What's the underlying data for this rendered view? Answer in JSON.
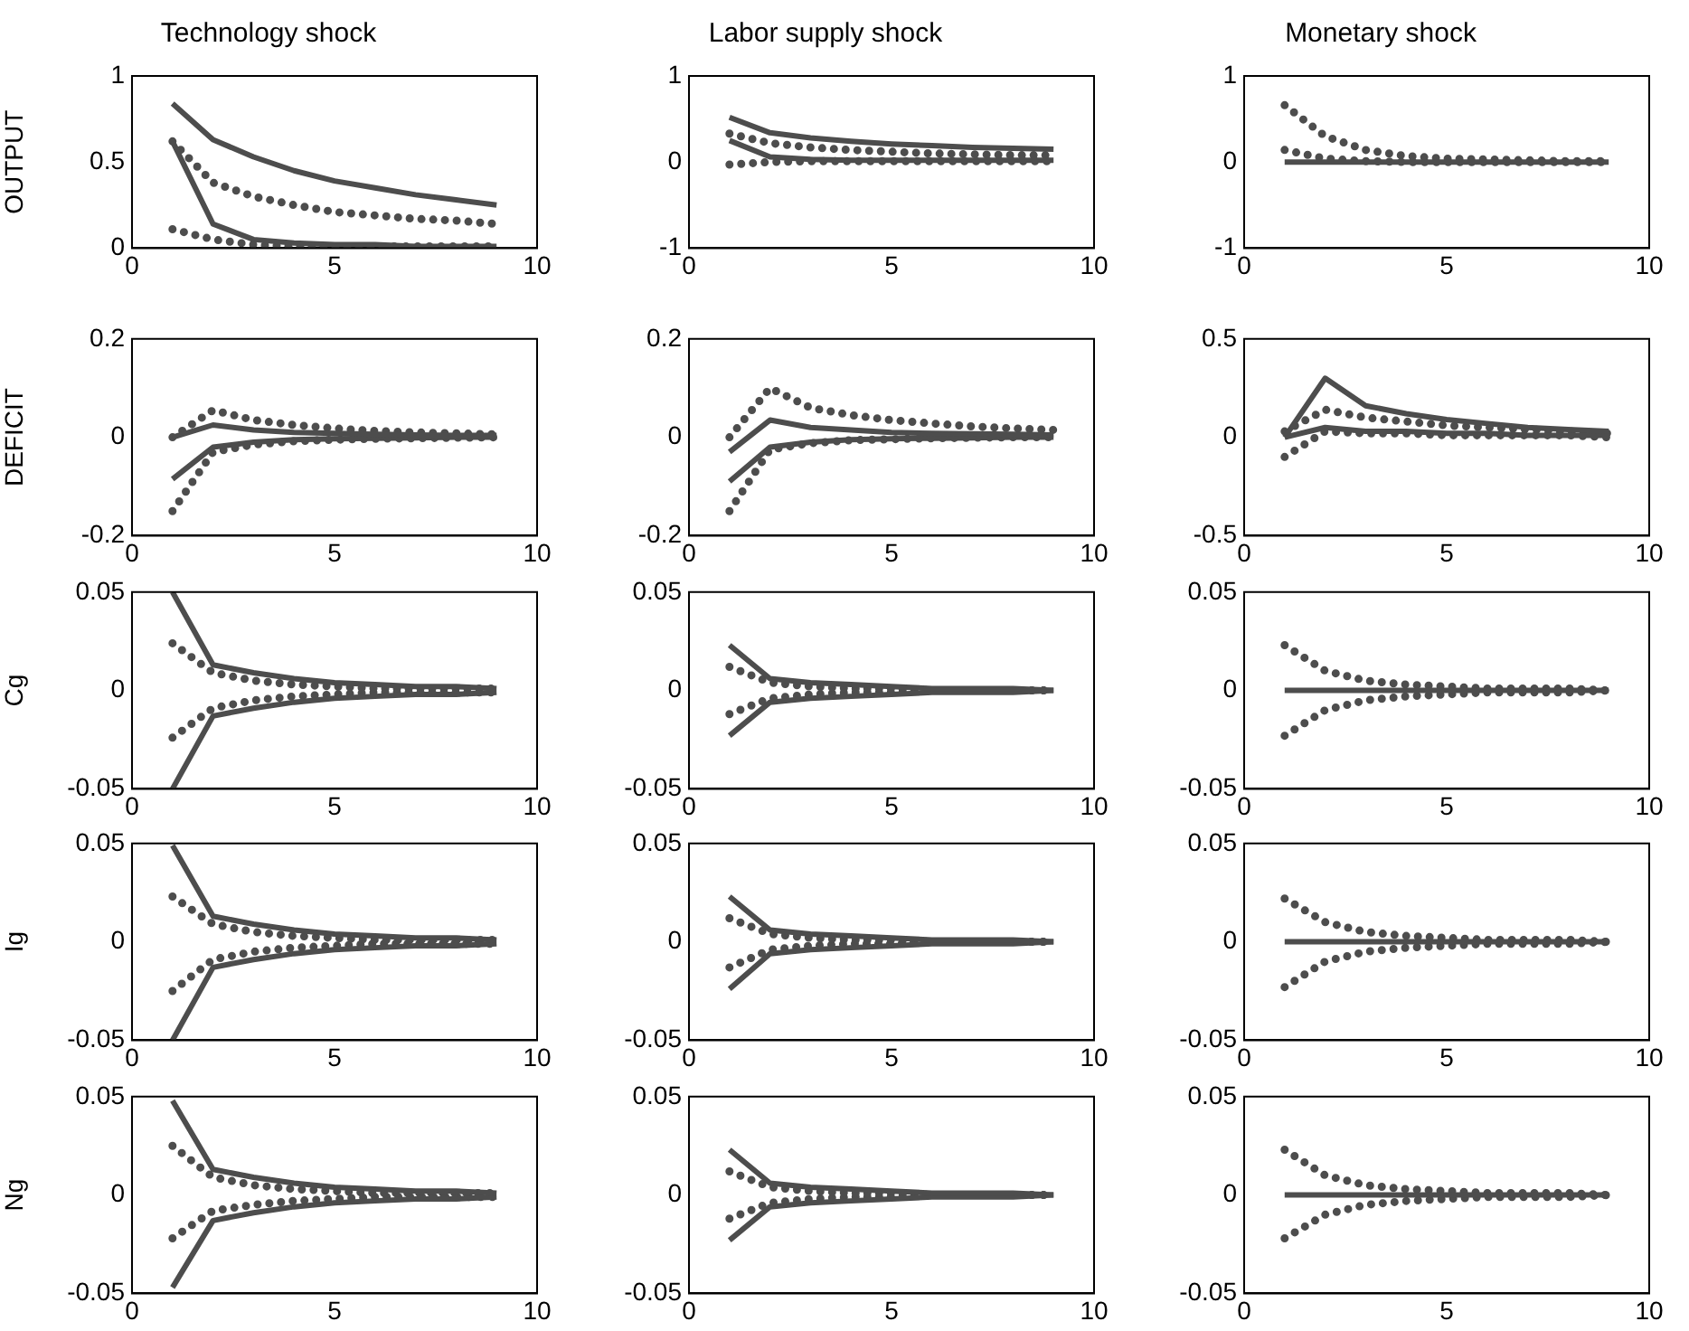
{
  "chart_data": [
    {
      "type": "line",
      "title": "Technology shock",
      "ylabel": "OUTPUT",
      "x": [
        1,
        2,
        3,
        4,
        5,
        6,
        7,
        8,
        9
      ],
      "xlim": [
        0,
        10
      ],
      "xticks": [
        0,
        5,
        10
      ],
      "ylim": [
        0,
        1
      ],
      "yticks": [
        0,
        0.5,
        1
      ],
      "grid": false,
      "legend": false,
      "marker": "none",
      "series": [
        {
          "color": "#4d4d4d",
          "line_style": "solid",
          "values": [
            0.84,
            0.63,
            0.53,
            0.45,
            0.39,
            0.35,
            0.31,
            0.28,
            0.25
          ]
        },
        {
          "color": "#4d4d4d",
          "line_style": "solid",
          "values": [
            0.62,
            0.14,
            0.05,
            0.03,
            0.02,
            0.02,
            0.01,
            0.01,
            0.01
          ]
        },
        {
          "color": "#4d4d4d",
          "line_style": "dotted",
          "values": [
            0.62,
            0.38,
            0.3,
            0.25,
            0.21,
            0.19,
            0.17,
            0.16,
            0.14
          ]
        },
        {
          "color": "#4d4d4d",
          "line_style": "dotted",
          "values": [
            0.11,
            0.05,
            0.02,
            0.01,
            0.01,
            0.01,
            0.01,
            0.01,
            0.01
          ]
        }
      ]
    },
    {
      "type": "line",
      "title": "Labor supply shock",
      "x": [
        1,
        2,
        3,
        4,
        5,
        6,
        7,
        8,
        9
      ],
      "xlim": [
        0,
        10
      ],
      "xticks": [
        0,
        5,
        10
      ],
      "ylim": [
        -1,
        1
      ],
      "yticks": [
        -1,
        0,
        1
      ],
      "grid": false,
      "legend": false,
      "marker": "none",
      "series": [
        {
          "color": "#4d4d4d",
          "line_style": "solid",
          "values": [
            0.52,
            0.34,
            0.28,
            0.24,
            0.21,
            0.19,
            0.17,
            0.16,
            0.15
          ]
        },
        {
          "color": "#4d4d4d",
          "line_style": "solid",
          "values": [
            0.25,
            0.06,
            0.03,
            0.02,
            0.02,
            0.02,
            0.02,
            0.02,
            0.02
          ]
        },
        {
          "color": "#4d4d4d",
          "line_style": "dotted",
          "values": [
            0.33,
            0.22,
            0.17,
            0.14,
            0.12,
            0.1,
            0.09,
            0.08,
            0.08
          ]
        },
        {
          "color": "#4d4d4d",
          "line_style": "dotted",
          "values": [
            -0.03,
            0.0,
            0.01,
            0.01,
            0.01,
            0.01,
            0.01,
            0.01,
            0.01
          ]
        }
      ]
    },
    {
      "type": "line",
      "title": "Monetary shock",
      "x": [
        1,
        2,
        3,
        4,
        5,
        6,
        7,
        8,
        9
      ],
      "xlim": [
        0,
        10
      ],
      "xticks": [
        0,
        5,
        10
      ],
      "ylim": [
        -1,
        1
      ],
      "yticks": [
        -1,
        0,
        1
      ],
      "grid": false,
      "legend": false,
      "marker": "none",
      "series": [
        {
          "color": "#4d4d4d",
          "line_style": "solid",
          "values": [
            0,
            0,
            0,
            0,
            0,
            0,
            0,
            0,
            0
          ]
        },
        {
          "color": "#4d4d4d",
          "line_style": "dotted",
          "values": [
            0.66,
            0.3,
            0.14,
            0.07,
            0.04,
            0.03,
            0.02,
            0.01,
            0.01
          ]
        },
        {
          "color": "#4d4d4d",
          "line_style": "dotted",
          "values": [
            0.14,
            0.04,
            0.01,
            0,
            0,
            0,
            0,
            0,
            0
          ]
        }
      ]
    },
    {
      "type": "line",
      "ylabel": "DEFICIT",
      "x": [
        1,
        2,
        3,
        4,
        5,
        6,
        7,
        8,
        9
      ],
      "xlim": [
        0,
        10
      ],
      "xticks": [
        0,
        5,
        10
      ],
      "ylim": [
        -0.2,
        0.2
      ],
      "yticks": [
        -0.2,
        0,
        0.2
      ],
      "grid": false,
      "legend": false,
      "marker": "none",
      "series": [
        {
          "color": "#4d4d4d",
          "line_style": "solid",
          "values": [
            0.0,
            0.025,
            0.015,
            0.01,
            0.008,
            0.006,
            0.005,
            0.004,
            0.004
          ]
        },
        {
          "color": "#4d4d4d",
          "line_style": "solid",
          "values": [
            -0.085,
            -0.02,
            -0.01,
            -0.005,
            -0.003,
            -0.002,
            -0.001,
            0,
            0
          ]
        },
        {
          "color": "#4d4d4d",
          "line_style": "dotted",
          "values": [
            0.0,
            0.055,
            0.035,
            0.025,
            0.018,
            0.013,
            0.01,
            0.008,
            0.006
          ]
        },
        {
          "color": "#4d4d4d",
          "line_style": "dotted",
          "values": [
            -0.15,
            -0.03,
            -0.015,
            -0.008,
            -0.005,
            -0.003,
            -0.002,
            -0.001,
            0
          ]
        }
      ]
    },
    {
      "type": "line",
      "x": [
        1,
        2,
        3,
        4,
        5,
        6,
        7,
        8,
        9
      ],
      "xlim": [
        0,
        10
      ],
      "xticks": [
        0,
        5,
        10
      ],
      "ylim": [
        -0.2,
        0.2
      ],
      "yticks": [
        -0.2,
        0,
        0.2
      ],
      "grid": false,
      "legend": false,
      "marker": "none",
      "series": [
        {
          "color": "#4d4d4d",
          "line_style": "solid",
          "values": [
            -0.03,
            0.035,
            0.02,
            0.015,
            0.01,
            0.008,
            0.007,
            0.006,
            0.005
          ]
        },
        {
          "color": "#4d4d4d",
          "line_style": "solid",
          "values": [
            -0.09,
            -0.02,
            -0.01,
            -0.005,
            -0.003,
            -0.002,
            -0.001,
            0,
            0
          ]
        },
        {
          "color": "#4d4d4d",
          "line_style": "dotted",
          "values": [
            0.0,
            0.1,
            0.06,
            0.045,
            0.035,
            0.028,
            0.022,
            0.018,
            0.015
          ]
        },
        {
          "color": "#4d4d4d",
          "line_style": "dotted",
          "values": [
            -0.15,
            -0.025,
            -0.012,
            -0.006,
            -0.004,
            -0.002,
            -0.001,
            0,
            0
          ]
        }
      ]
    },
    {
      "type": "line",
      "x": [
        1,
        2,
        3,
        4,
        5,
        6,
        7,
        8,
        9
      ],
      "xlim": [
        0,
        10
      ],
      "xticks": [
        0,
        5,
        10
      ],
      "ylim": [
        -0.5,
        0.5
      ],
      "yticks": [
        -0.5,
        0,
        0.5
      ],
      "grid": false,
      "legend": false,
      "marker": "none",
      "series": [
        {
          "color": "#4d4d4d",
          "line_style": "solid",
          "values": [
            0.0,
            0.3,
            0.16,
            0.12,
            0.09,
            0.07,
            0.05,
            0.04,
            0.03
          ]
        },
        {
          "color": "#4d4d4d",
          "line_style": "solid",
          "values": [
            0.0,
            0.05,
            0.03,
            0.03,
            0.02,
            0.02,
            0.01,
            0.01,
            0.01
          ]
        },
        {
          "color": "#4d4d4d",
          "line_style": "dotted",
          "values": [
            0.03,
            0.14,
            0.1,
            0.08,
            0.06,
            0.05,
            0.04,
            0.03,
            0.02
          ]
        },
        {
          "color": "#4d4d4d",
          "line_style": "dotted",
          "values": [
            -0.1,
            0.03,
            0.02,
            0.02,
            0.01,
            0.01,
            0.01,
            0.01,
            0.0
          ]
        }
      ]
    },
    {
      "type": "line",
      "ylabel": "Cg",
      "x": [
        1,
        2,
        3,
        4,
        5,
        6,
        7,
        8,
        9
      ],
      "xlim": [
        0,
        10
      ],
      "xticks": [
        0,
        5,
        10
      ],
      "ylim": [
        -0.05,
        0.05
      ],
      "yticks": [
        -0.05,
        0,
        0.05
      ],
      "grid": false,
      "legend": false,
      "marker": "none",
      "series": [
        {
          "color": "#4d4d4d",
          "line_style": "solid",
          "values": [
            0.05,
            0.013,
            0.009,
            0.006,
            0.004,
            0.003,
            0.002,
            0.002,
            0.001
          ]
        },
        {
          "color": "#4d4d4d",
          "line_style": "solid",
          "values": [
            -0.05,
            -0.013,
            -0.009,
            -0.006,
            -0.004,
            -0.003,
            -0.002,
            -0.002,
            -0.001
          ]
        },
        {
          "color": "#4d4d4d",
          "line_style": "dotted",
          "values": [
            0.024,
            0.009,
            0.005,
            0.003,
            0.002,
            0.001,
            0.001,
            0.001,
            0.001
          ]
        },
        {
          "color": "#4d4d4d",
          "line_style": "dotted",
          "values": [
            -0.024,
            -0.009,
            -0.005,
            -0.003,
            -0.002,
            -0.001,
            -0.001,
            -0.001,
            -0.001
          ]
        }
      ]
    },
    {
      "type": "line",
      "x": [
        1,
        2,
        3,
        4,
        5,
        6,
        7,
        8,
        9
      ],
      "xlim": [
        0,
        10
      ],
      "xticks": [
        0,
        5,
        10
      ],
      "ylim": [
        -0.05,
        0.05
      ],
      "yticks": [
        -0.05,
        0,
        0.05
      ],
      "grid": false,
      "legend": false,
      "marker": "none",
      "series": [
        {
          "color": "#4d4d4d",
          "line_style": "solid",
          "values": [
            0.023,
            0.006,
            0.004,
            0.003,
            0.002,
            0.001,
            0.001,
            0.001,
            0
          ]
        },
        {
          "color": "#4d4d4d",
          "line_style": "solid",
          "values": [
            -0.023,
            -0.006,
            -0.004,
            -0.003,
            -0.002,
            -0.001,
            -0.001,
            -0.001,
            0
          ]
        },
        {
          "color": "#4d4d4d",
          "line_style": "dotted",
          "values": [
            0.012,
            0.004,
            0.002,
            0.001,
            0.001,
            0,
            0,
            0,
            0
          ]
        },
        {
          "color": "#4d4d4d",
          "line_style": "dotted",
          "values": [
            -0.012,
            -0.004,
            -0.002,
            -0.001,
            -0.001,
            0,
            0,
            0,
            0
          ]
        }
      ]
    },
    {
      "type": "line",
      "x": [
        1,
        2,
        3,
        4,
        5,
        6,
        7,
        8,
        9
      ],
      "xlim": [
        0,
        10
      ],
      "xticks": [
        0,
        5,
        10
      ],
      "ylim": [
        -0.05,
        0.05
      ],
      "yticks": [
        -0.05,
        0,
        0.05
      ],
      "grid": false,
      "legend": false,
      "marker": "none",
      "series": [
        {
          "color": "#4d4d4d",
          "line_style": "solid",
          "values": [
            0,
            0,
            0,
            0,
            0,
            0,
            0,
            0,
            0
          ]
        },
        {
          "color": "#4d4d4d",
          "line_style": "dotted",
          "values": [
            0.023,
            0.01,
            0.005,
            0.003,
            0.002,
            0.001,
            0.001,
            0.001,
            0
          ]
        },
        {
          "color": "#4d4d4d",
          "line_style": "dotted",
          "values": [
            -0.023,
            -0.01,
            -0.005,
            -0.003,
            -0.002,
            -0.001,
            -0.001,
            -0.001,
            0
          ]
        }
      ]
    },
    {
      "type": "line",
      "ylabel": "Ig",
      "x": [
        1,
        2,
        3,
        4,
        5,
        6,
        7,
        8,
        9
      ],
      "xlim": [
        0,
        10
      ],
      "xticks": [
        0,
        5,
        10
      ],
      "ylim": [
        -0.05,
        0.05
      ],
      "yticks": [
        -0.05,
        0,
        0.05
      ],
      "grid": false,
      "legend": false,
      "marker": "none",
      "series": [
        {
          "color": "#4d4d4d",
          "line_style": "solid",
          "values": [
            0.049,
            0.013,
            0.009,
            0.006,
            0.004,
            0.003,
            0.002,
            0.002,
            0.001
          ]
        },
        {
          "color": "#4d4d4d",
          "line_style": "solid",
          "values": [
            -0.05,
            -0.013,
            -0.009,
            -0.006,
            -0.004,
            -0.003,
            -0.002,
            -0.002,
            -0.001
          ]
        },
        {
          "color": "#4d4d4d",
          "line_style": "dotted",
          "values": [
            0.023,
            0.009,
            0.005,
            0.003,
            0.002,
            0.001,
            0.001,
            0.001,
            0.001
          ]
        },
        {
          "color": "#4d4d4d",
          "line_style": "dotted",
          "values": [
            -0.025,
            -0.009,
            -0.005,
            -0.003,
            -0.002,
            -0.001,
            -0.001,
            -0.001,
            -0.001
          ]
        }
      ]
    },
    {
      "type": "line",
      "x": [
        1,
        2,
        3,
        4,
        5,
        6,
        7,
        8,
        9
      ],
      "xlim": [
        0,
        10
      ],
      "xticks": [
        0,
        5,
        10
      ],
      "ylim": [
        -0.05,
        0.05
      ],
      "yticks": [
        -0.05,
        0,
        0.05
      ],
      "grid": false,
      "legend": false,
      "marker": "none",
      "series": [
        {
          "color": "#4d4d4d",
          "line_style": "solid",
          "values": [
            0.023,
            0.006,
            0.004,
            0.003,
            0.002,
            0.001,
            0.001,
            0.001,
            0
          ]
        },
        {
          "color": "#4d4d4d",
          "line_style": "solid",
          "values": [
            -0.024,
            -0.006,
            -0.004,
            -0.003,
            -0.002,
            -0.001,
            -0.001,
            -0.001,
            0
          ]
        },
        {
          "color": "#4d4d4d",
          "line_style": "dotted",
          "values": [
            0.012,
            0.004,
            0.002,
            0.001,
            0.001,
            0,
            0,
            0,
            0
          ]
        },
        {
          "color": "#4d4d4d",
          "line_style": "dotted",
          "values": [
            -0.013,
            -0.004,
            -0.002,
            -0.001,
            -0.001,
            0,
            0,
            0,
            0
          ]
        }
      ]
    },
    {
      "type": "line",
      "x": [
        1,
        2,
        3,
        4,
        5,
        6,
        7,
        8,
        9
      ],
      "xlim": [
        0,
        10
      ],
      "xticks": [
        0,
        5,
        10
      ],
      "ylim": [
        -0.05,
        0.05
      ],
      "yticks": [
        -0.05,
        0,
        0.05
      ],
      "grid": false,
      "legend": false,
      "marker": "none",
      "series": [
        {
          "color": "#4d4d4d",
          "line_style": "solid",
          "values": [
            0,
            0,
            0,
            0,
            0,
            0,
            0,
            0,
            0
          ]
        },
        {
          "color": "#4d4d4d",
          "line_style": "dotted",
          "values": [
            0.022,
            0.01,
            0.005,
            0.003,
            0.002,
            0.001,
            0.001,
            0.001,
            0
          ]
        },
        {
          "color": "#4d4d4d",
          "line_style": "dotted",
          "values": [
            -0.023,
            -0.01,
            -0.005,
            -0.003,
            -0.002,
            -0.001,
            -0.001,
            -0.001,
            0
          ]
        }
      ]
    },
    {
      "type": "line",
      "ylabel": "Ng",
      "x": [
        1,
        2,
        3,
        4,
        5,
        6,
        7,
        8,
        9
      ],
      "xlim": [
        0,
        10
      ],
      "xticks": [
        0,
        5,
        10
      ],
      "ylim": [
        -0.05,
        0.05
      ],
      "yticks": [
        -0.05,
        0,
        0.05
      ],
      "grid": false,
      "legend": false,
      "marker": "none",
      "series": [
        {
          "color": "#4d4d4d",
          "line_style": "solid",
          "values": [
            0.048,
            0.013,
            0.009,
            0.006,
            0.004,
            0.003,
            0.002,
            0.002,
            0.001
          ]
        },
        {
          "color": "#4d4d4d",
          "line_style": "solid",
          "values": [
            -0.047,
            -0.013,
            -0.009,
            -0.006,
            -0.004,
            -0.003,
            -0.002,
            -0.002,
            -0.001
          ]
        },
        {
          "color": "#4d4d4d",
          "line_style": "dotted",
          "values": [
            0.025,
            0.009,
            0.005,
            0.003,
            0.002,
            0.001,
            0.001,
            0.001,
            0.001
          ]
        },
        {
          "color": "#4d4d4d",
          "line_style": "dotted",
          "values": [
            -0.022,
            -0.008,
            -0.005,
            -0.003,
            -0.002,
            -0.001,
            -0.001,
            -0.001,
            -0.001
          ]
        }
      ]
    },
    {
      "type": "line",
      "x": [
        1,
        2,
        3,
        4,
        5,
        6,
        7,
        8,
        9
      ],
      "xlim": [
        0,
        10
      ],
      "xticks": [
        0,
        5,
        10
      ],
      "ylim": [
        -0.05,
        0.05
      ],
      "yticks": [
        -0.05,
        0,
        0.05
      ],
      "grid": false,
      "legend": false,
      "marker": "none",
      "series": [
        {
          "color": "#4d4d4d",
          "line_style": "solid",
          "values": [
            0.023,
            0.006,
            0.004,
            0.003,
            0.002,
            0.001,
            0.001,
            0.001,
            0
          ]
        },
        {
          "color": "#4d4d4d",
          "line_style": "solid",
          "values": [
            -0.023,
            -0.006,
            -0.004,
            -0.003,
            -0.002,
            -0.001,
            -0.001,
            -0.001,
            0
          ]
        },
        {
          "color": "#4d4d4d",
          "line_style": "dotted",
          "values": [
            0.012,
            0.004,
            0.002,
            0.001,
            0.001,
            0,
            0,
            0,
            0
          ]
        },
        {
          "color": "#4d4d4d",
          "line_style": "dotted",
          "values": [
            -0.012,
            -0.004,
            -0.002,
            -0.001,
            -0.001,
            0,
            0,
            0,
            0
          ]
        }
      ]
    },
    {
      "type": "line",
      "x": [
        1,
        2,
        3,
        4,
        5,
        6,
        7,
        8,
        9
      ],
      "xlim": [
        0,
        10
      ],
      "xticks": [
        0,
        5,
        10
      ],
      "ylim": [
        -0.05,
        0.05
      ],
      "yticks": [
        -0.05,
        0,
        0.05
      ],
      "grid": false,
      "legend": false,
      "marker": "none",
      "series": [
        {
          "color": "#4d4d4d",
          "line_style": "solid",
          "values": [
            0,
            0,
            0,
            0,
            0,
            0,
            0,
            0,
            0
          ]
        },
        {
          "color": "#4d4d4d",
          "line_style": "dotted",
          "values": [
            0.023,
            0.01,
            0.005,
            0.003,
            0.002,
            0.001,
            0.001,
            0.001,
            0
          ]
        },
        {
          "color": "#4d4d4d",
          "line_style": "dotted",
          "values": [
            -0.022,
            -0.01,
            -0.005,
            -0.003,
            -0.002,
            -0.001,
            -0.001,
            -0.001,
            0
          ]
        }
      ]
    }
  ]
}
